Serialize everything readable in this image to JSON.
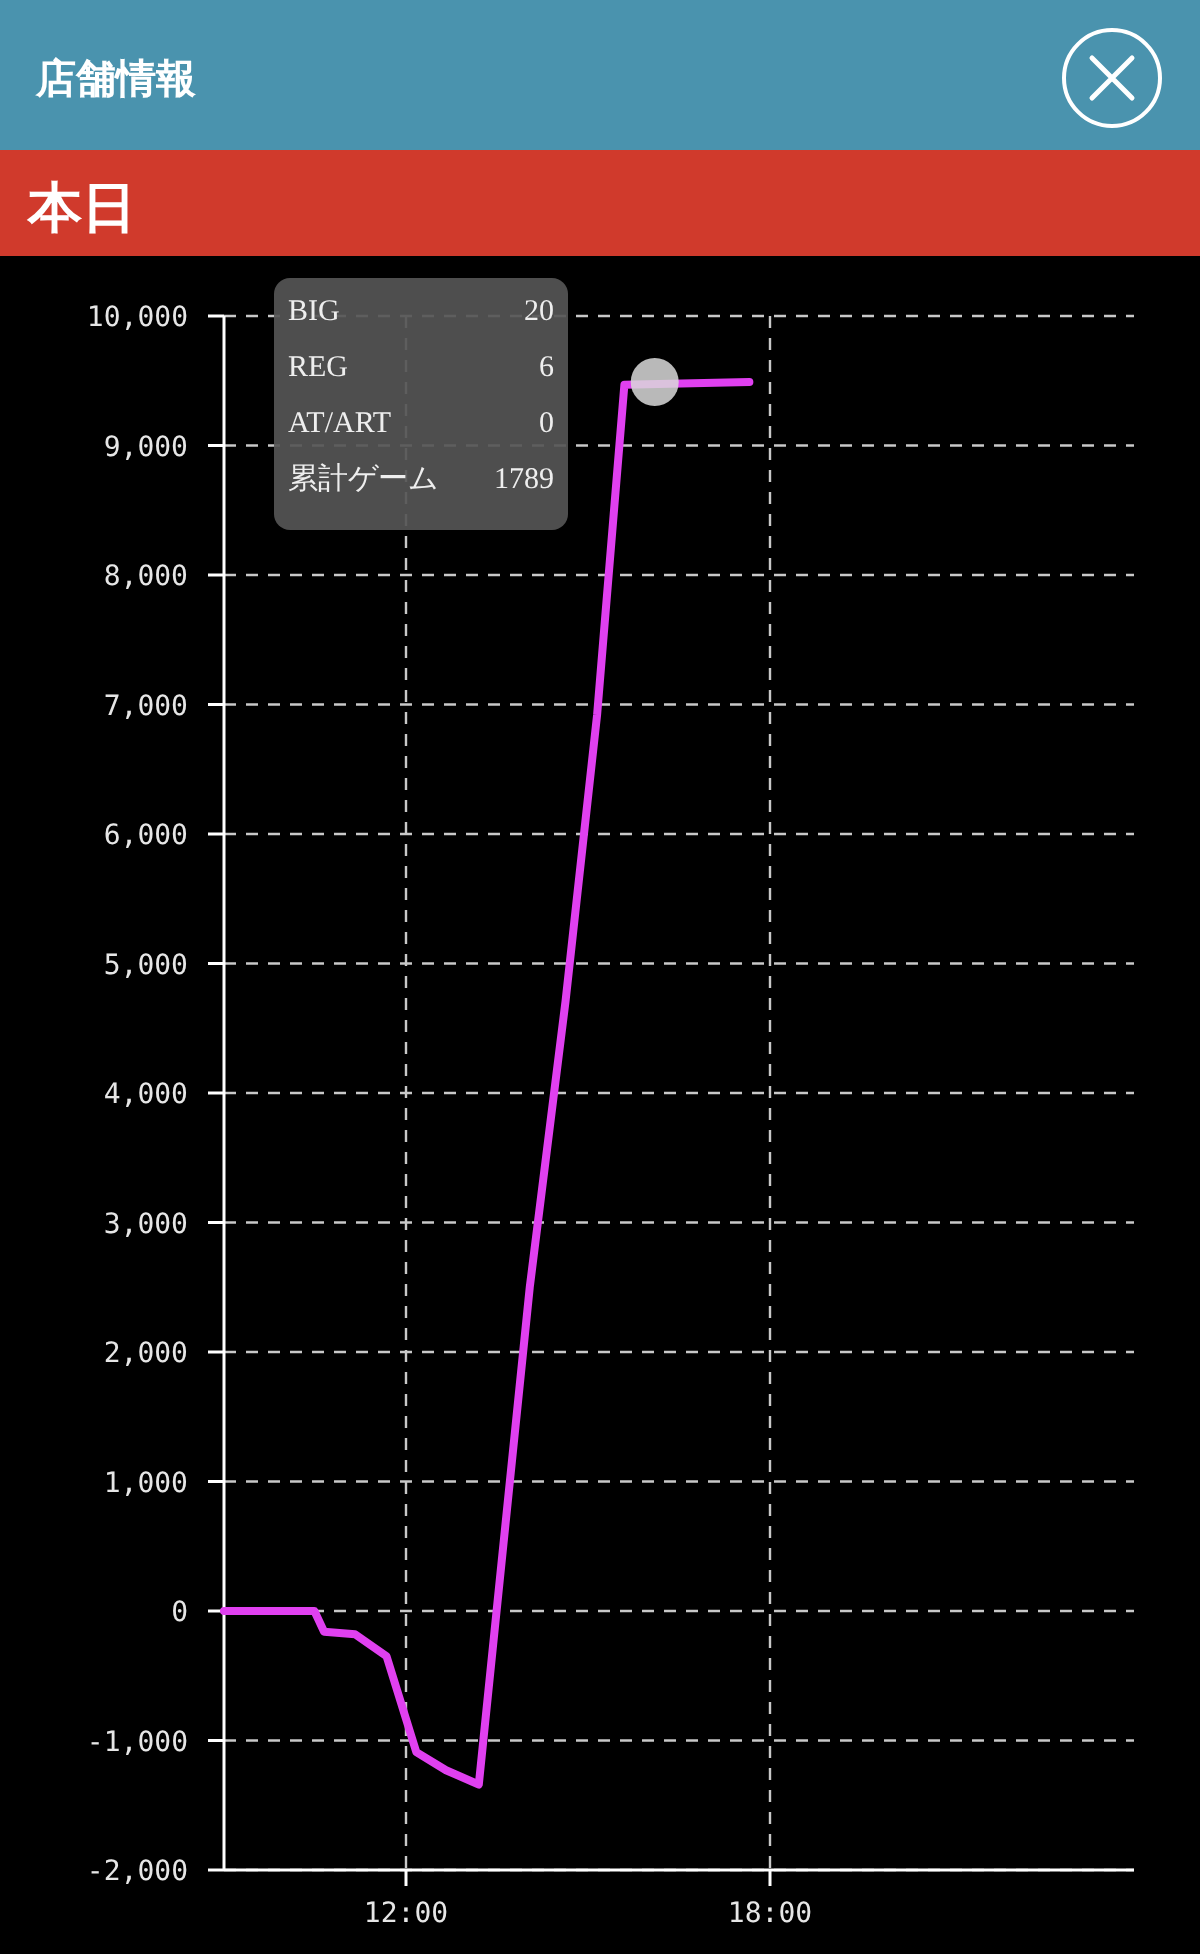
{
  "chart_data": {
    "type": "line",
    "title": "店舗情報",
    "subtitle": "本日",
    "x": [
      9,
      10.49,
      10.65,
      11.16,
      11.68,
      12.17,
      12.66,
      13.2,
      14.04,
      14.63,
      15.15,
      15.6,
      17.66
    ],
    "series": [
      {
        "color": "#e040f0",
        "values": [
          0,
          0,
          -160,
          -180,
          -350,
          -1090,
          -1230,
          -1340,
          2500,
          4710,
          6920,
          9470,
          9490
        ]
      },
      {
        "type": "scatter",
        "color": "#d9d9d9",
        "x": [
          16.1
        ],
        "values": [
          9490
        ]
      }
    ],
    "xlim": [
      9,
      24
    ],
    "xticks": [
      {
        "value": 12,
        "label": "12:00"
      },
      {
        "value": 18,
        "label": "18:00"
      }
    ],
    "ylim": [
      -2000,
      10000
    ],
    "yticks": [
      {
        "value": -2000,
        "label": "-2,000"
      },
      {
        "value": -1000,
        "label": "-1,000"
      },
      0,
      {
        "value": 1000,
        "label": "1,000"
      },
      {
        "value": 2000,
        "label": "2,000"
      },
      {
        "value": 3000,
        "label": "3,000"
      },
      {
        "value": 4000,
        "label": "4,000"
      },
      {
        "value": 5000,
        "label": "5,000"
      },
      {
        "value": 6000,
        "label": "6,000"
      },
      {
        "value": 7000,
        "label": "7,000"
      },
      {
        "value": 8000,
        "label": "8,000"
      },
      {
        "value": 9000,
        "label": "9,000"
      },
      {
        "value": 10000,
        "label": "10,000"
      }
    ],
    "grid": true,
    "line_style": "solid",
    "annotations": [
      "BIG",
      "20",
      "REG",
      "6",
      "AT/ART",
      "0",
      "累計ゲーム",
      "1789"
    ]
  }
}
